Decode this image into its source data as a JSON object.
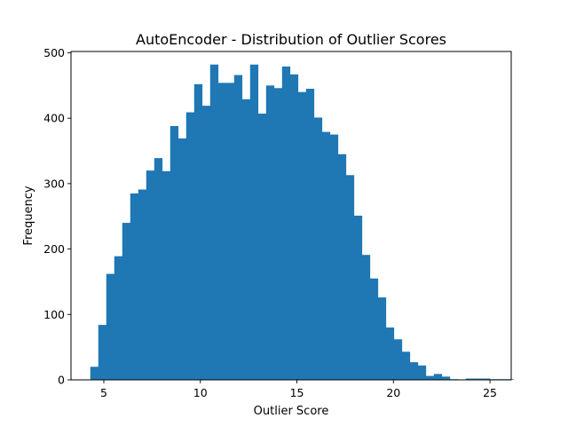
{
  "chart_data": {
    "type": "bar",
    "title": "AutoEncoder - Distribution of Outlier Scores",
    "xlabel": "Outlier Score",
    "ylabel": "Frequency",
    "xlim": [
      3.3,
      26.1
    ],
    "ylim": [
      0,
      502
    ],
    "x_ticks": [
      5,
      10,
      15,
      20,
      25
    ],
    "y_ticks": [
      0,
      100,
      200,
      300,
      400,
      500
    ],
    "grid": false,
    "bar_color": "#1f77b4",
    "bin_start": 4.3,
    "bin_width": 0.4138,
    "values": [
      20,
      84,
      162,
      189,
      240,
      285,
      291,
      320,
      339,
      319,
      388,
      369,
      409,
      452,
      419,
      482,
      454,
      454,
      466,
      429,
      482,
      407,
      450,
      446,
      479,
      467,
      440,
      445,
      401,
      379,
      375,
      345,
      313,
      251,
      191,
      155,
      126,
      80,
      62,
      43,
      27,
      22,
      6,
      9,
      5,
      1,
      0,
      2,
      2,
      2,
      1,
      1,
      1
    ]
  }
}
